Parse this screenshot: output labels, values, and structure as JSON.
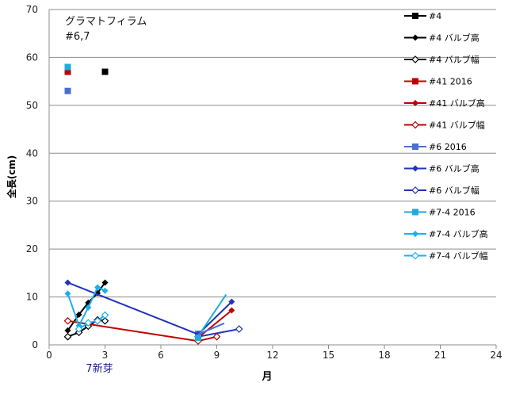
{
  "chart_data": {
    "type": "line",
    "title": "グラマトフィラム",
    "subtitle": "#6,7",
    "xlabel": "月",
    "ylabel": "全長(cm)",
    "xlim": [
      0,
      24
    ],
    "ylim": [
      0,
      70
    ],
    "x_ticks": [
      0,
      3,
      6,
      9,
      12,
      15,
      18,
      21,
      24
    ],
    "y_ticks": [
      0,
      10,
      20,
      30,
      40,
      50,
      60,
      70
    ],
    "grid": "horizontal",
    "legend_position": "right",
    "annotations": [
      {
        "text": "7新芽",
        "x": 2.7,
        "y": -5.6
      }
    ],
    "series": [
      {
        "name": "#4",
        "color": "#000000",
        "marker": "square",
        "line": false,
        "points": [
          [
            3,
            57
          ]
        ]
      },
      {
        "name": "#4 バルブ高",
        "color": "#000000",
        "marker": "diamond",
        "line": true,
        "points": [
          [
            1,
            3
          ],
          [
            1.6,
            6.3
          ],
          [
            2.1,
            8.8
          ],
          [
            2.6,
            10.8
          ],
          [
            3,
            13
          ]
        ]
      },
      {
        "name": "#4 バルブ幅",
        "color": "#000000",
        "marker": "diamond-open",
        "line": true,
        "points": [
          [
            1,
            1.7
          ],
          [
            1.6,
            2.6
          ],
          [
            2.1,
            3.9
          ],
          [
            2.6,
            5.2
          ],
          [
            3,
            5
          ]
        ]
      },
      {
        "name": "#41 2016",
        "color": "#c00000",
        "marker": "square",
        "line": false,
        "points": [
          [
            1,
            57
          ]
        ]
      },
      {
        "name": "#41 バルブ高",
        "color": "#c00000",
        "marker": "diamond",
        "line": true,
        "points": [
          [
            8,
            1.5
          ],
          [
            9.8,
            7.2
          ]
        ]
      },
      {
        "name": "#41 バルブ幅",
        "color": "#c00000",
        "marker": "diamond-open",
        "line": true,
        "points": [
          [
            1,
            5
          ],
          [
            8,
            0.8
          ],
          [
            9,
            1.7
          ]
        ]
      },
      {
        "name": "#6 2016",
        "color": "#4a6fd1",
        "marker": "square",
        "line": false,
        "points": [
          [
            1,
            53
          ],
          [
            8,
            2.3
          ]
        ]
      },
      {
        "name": "#6 バルブ高",
        "color": "#2233bb",
        "marker": "diamond",
        "line": true,
        "points": [
          [
            1,
            13
          ],
          [
            8,
            2.2
          ],
          [
            9.8,
            9
          ]
        ]
      },
      {
        "name": "#6 バルブ幅",
        "color": "#2233bb",
        "marker": "diamond-open",
        "line": true,
        "points": [
          [
            8,
            1.7
          ],
          [
            10.2,
            3.3
          ]
        ]
      },
      {
        "name": "#7-4 2016",
        "color": "#22aadd",
        "marker": "square",
        "line": false,
        "points": [
          [
            1,
            58
          ],
          [
            8,
            1.5
          ]
        ]
      },
      {
        "name": "#7-4 バルブ高",
        "color": "#1ab0ee",
        "marker": "diamond",
        "line": true,
        "points": [
          [
            1,
            10.7
          ],
          [
            1.6,
            4
          ],
          [
            2.1,
            7.8
          ],
          [
            2.6,
            12
          ],
          [
            3,
            11.3
          ]
        ]
      },
      {
        "name": "#7-4 バルブ幅",
        "color": "#1ab0ee",
        "marker": "diamond-open",
        "line": true,
        "points": [
          [
            1.6,
            3.3
          ],
          [
            2.1,
            4.6
          ],
          [
            2.6,
            5
          ],
          [
            3,
            6.2
          ]
        ]
      },
      {
        "name": "",
        "color": "#22aadd",
        "marker": "none",
        "line": true,
        "points": [
          [
            8,
            1.8
          ],
          [
            9.5,
            10.5
          ]
        ]
      },
      {
        "name": "",
        "color": "#4a6fd1",
        "marker": "none",
        "line": true,
        "points": [
          [
            8,
            2.2
          ],
          [
            9.4,
            4.5
          ]
        ]
      }
    ]
  }
}
